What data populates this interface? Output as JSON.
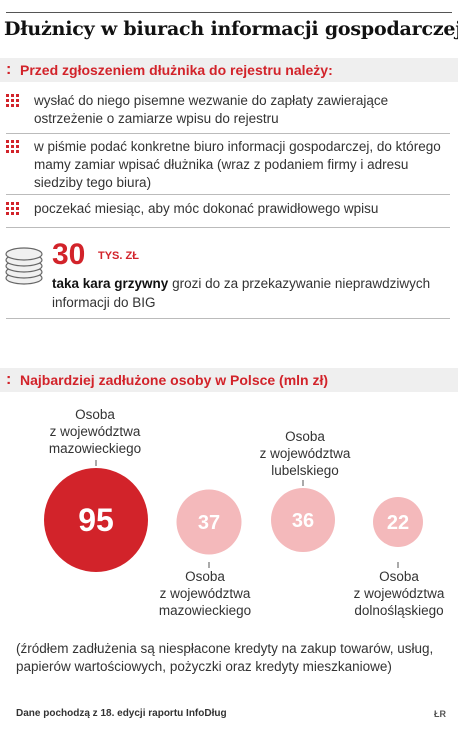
{
  "title": "Dłużnicy w biurach informacji gospodarczej",
  "section1": {
    "header": "Przed zgłoszeniem dłużnika do rejestru należy:",
    "items": [
      "wysłać do niego pisemne wezwanie do zapłaty zawierające ostrzeżenie o zamiarze wpisu do rejestru",
      "w piśmie podać konkretne biuro informacji gospodarczej, do którego mamy zamiar wpisać dłużnika (wraz z podaniem firmy i adresu siedziby tego biura)",
      "poczekać miesiąc, aby móc dokonać prawidłowego wpisu"
    ]
  },
  "fine": {
    "amount": "30",
    "unit": "TYS. ZŁ",
    "bold": "taka kara grzywny",
    "rest": " grozi do za przekazywanie nieprawdziwych informacji do BIG"
  },
  "section2": {
    "header": "Najbardziej zadłużone osoby w Polsce (mln zł)"
  },
  "chart_data": {
    "type": "bubble",
    "title": "Najbardziej zadłużone osoby w Polsce (mln zł)",
    "categories": [
      "Osoba z województwa mazowieckiego",
      "Osoba z województwa mazowieckiego",
      "Osoba z województwa lubelskiego",
      "Osoba z województwa dolnośląskiego"
    ],
    "values": [
      95,
      37,
      36,
      22
    ],
    "labels": [
      [
        "Osoba",
        "z województwa",
        "mazowieckiego"
      ],
      [
        "Osoba",
        "z województwa",
        "mazowieckiego"
      ],
      [
        "Osoba",
        "z województwa",
        "lubelskiego"
      ],
      [
        "Osoba",
        "z województwa",
        "dolnośląskiego"
      ]
    ],
    "colors": [
      "#d2232a",
      "#f4b9bb",
      "#f4b9bb",
      "#f4b9bb"
    ]
  },
  "footnote": "(źródłem zadłużenia są niespłacone kredyty na zakup towarów, usług, papierów wartościowych, pożyczki oraz kredyty mieszkaniowe)",
  "source": "Dane pochodzą z 18. edycji raportu InfoDług",
  "credit": "ŁR",
  "colors": {
    "accent": "#d2232a",
    "light": "#f4b9bb",
    "band": "#efefef"
  }
}
